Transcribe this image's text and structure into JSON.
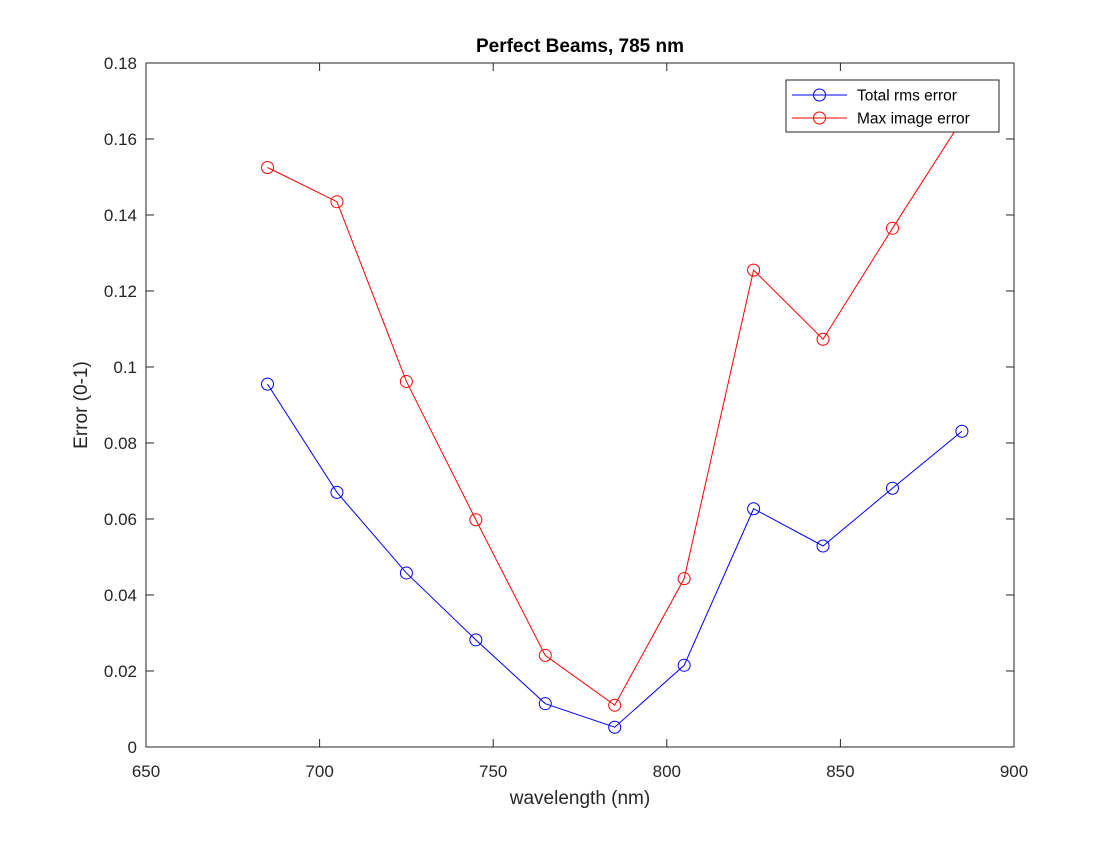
{
  "chart_data": {
    "type": "line",
    "title": "Perfect Beams, 785 nm",
    "xlabel": "wavelength (nm)",
    "ylabel": "Error (0-1)",
    "xlim": [
      650,
      900
    ],
    "ylim": [
      0,
      0.18
    ],
    "xticks": [
      650,
      700,
      750,
      800,
      850,
      900
    ],
    "xtick_labels": [
      "650",
      "700",
      "750",
      "800",
      "850",
      "900"
    ],
    "yticks": [
      0,
      0.02,
      0.04,
      0.06,
      0.08,
      0.1,
      0.12,
      0.14,
      0.16,
      0.18
    ],
    "ytick_labels": [
      "0",
      "0.02",
      "0.04",
      "0.06",
      "0.08",
      "0.1",
      "0.12",
      "0.14",
      "0.16",
      "0.18"
    ],
    "grid": false,
    "legend_location": "top-right",
    "x": [
      685,
      705,
      725,
      745,
      765,
      785,
      805,
      825,
      845,
      865,
      885
    ],
    "series": [
      {
        "name": "Total rms error",
        "color": "#0000ff",
        "marker": "circle",
        "values": [
          0.0955,
          0.067,
          0.0458,
          0.0282,
          0.0114,
          0.0052,
          0.0215,
          0.0627,
          0.0529,
          0.0681,
          0.0831
        ]
      },
      {
        "name": "Max image error",
        "color": "#ff0000",
        "marker": "circle",
        "values": [
          0.1525,
          0.1435,
          0.0962,
          0.0598,
          0.0241,
          0.011,
          0.0443,
          0.1255,
          0.1073,
          0.1365,
          0.165
        ]
      }
    ]
  }
}
